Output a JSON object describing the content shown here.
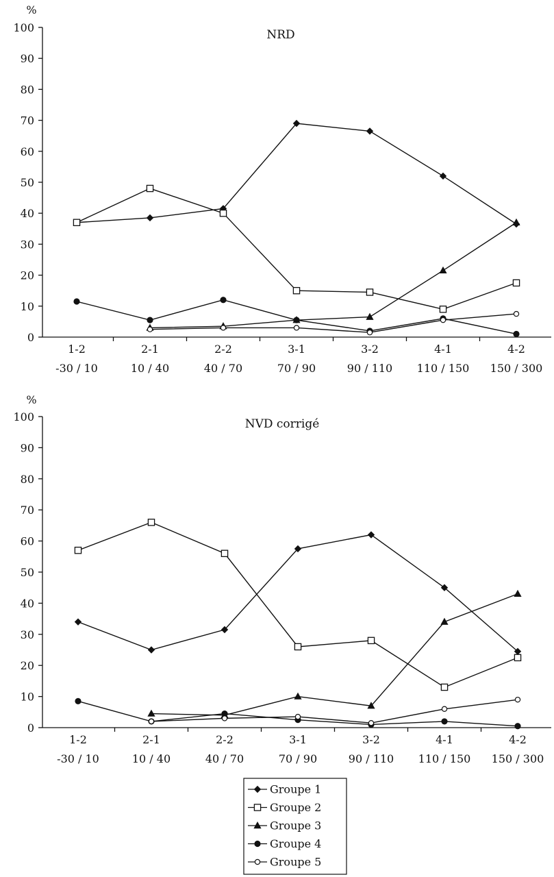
{
  "chart_data": [
    {
      "type": "line",
      "title": "NRD",
      "ylabel": "%",
      "ylim": [
        0,
        100
      ],
      "yticks": [
        0,
        10,
        20,
        30,
        40,
        50,
        60,
        70,
        80,
        90,
        100
      ],
      "categories": [
        "1-2",
        "2-1",
        "2-2",
        "3-1",
        "3-2",
        "4-1",
        "4-2"
      ],
      "category_ranges": [
        "-30 / 10",
        "10 / 40",
        "40 / 70",
        "70 / 90",
        "90 / 110",
        "110 / 150",
        "150 / 300"
      ],
      "series": [
        {
          "name": "Groupe 1",
          "marker": "diamond-filled",
          "values": [
            37,
            38.5,
            41.5,
            69,
            66.5,
            52,
            36.5
          ]
        },
        {
          "name": "Groupe 2",
          "marker": "square-open",
          "values": [
            37,
            48,
            40,
            15,
            14.5,
            9,
            17.5
          ]
        },
        {
          "name": "Groupe 3",
          "marker": "triangle-filled",
          "values": [
            null,
            3,
            3.5,
            5.5,
            6.5,
            21.5,
            37
          ]
        },
        {
          "name": "Groupe 4",
          "marker": "circle-filled",
          "values": [
            11.5,
            5.5,
            12,
            5.5,
            2,
            6,
            1
          ]
        },
        {
          "name": "Groupe 5",
          "marker": "circle-open",
          "values": [
            null,
            2.5,
            3,
            3,
            1.5,
            5.5,
            7.5
          ]
        }
      ]
    },
    {
      "type": "line",
      "title": "NVD corrigé",
      "ylabel": "%",
      "ylim": [
        0,
        100
      ],
      "yticks": [
        0,
        10,
        20,
        30,
        40,
        50,
        60,
        70,
        80,
        90,
        100
      ],
      "categories": [
        "1-2",
        "2-1",
        "2-2",
        "3-1",
        "3-2",
        "4-1",
        "4-2"
      ],
      "category_ranges": [
        "-30 / 10",
        "10 / 40",
        "40 / 70",
        "70 / 90",
        "90 / 110",
        "110 / 150",
        "150 / 300"
      ],
      "series": [
        {
          "name": "Groupe 1",
          "marker": "diamond-filled",
          "values": [
            34,
            25,
            31.5,
            57.5,
            62,
            45,
            24.5
          ]
        },
        {
          "name": "Groupe 2",
          "marker": "square-open",
          "values": [
            57,
            66,
            56,
            26,
            28,
            13,
            22.5
          ]
        },
        {
          "name": "Groupe 3",
          "marker": "triangle-filled",
          "values": [
            null,
            4.5,
            4,
            10,
            7,
            34,
            43
          ]
        },
        {
          "name": "Groupe 4",
          "marker": "circle-filled",
          "values": [
            8.5,
            2,
            4.5,
            2.5,
            1,
            2,
            0.5
          ]
        },
        {
          "name": "Groupe 5",
          "marker": "circle-open",
          "values": [
            null,
            2,
            3,
            3.5,
            1.5,
            6,
            9
          ]
        }
      ]
    }
  ],
  "legend": {
    "entries": [
      "Groupe 1",
      "Groupe 2",
      "Groupe 3",
      "Groupe 4",
      "Groupe 5"
    ]
  },
  "colors": {
    "line": "#111111",
    "background": "#ffffff"
  }
}
